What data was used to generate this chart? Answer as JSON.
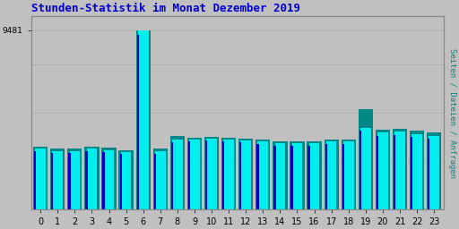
{
  "title": "Stunden-Statistik im Monat Dezember 2019",
  "title_color": "#0000cc",
  "title_fontsize": 9,
  "ylabel_right": "Seiten / Dateien / Anfragen",
  "ylabel_right_color": "#008888",
  "background_color": "#c0c0c0",
  "plot_bg_color": "#c0c0c0",
  "bar_color_cyan": "#00eeee",
  "bar_color_teal": "#008888",
  "bar_color_blue": "#0000cc",
  "x_labels": [
    "0",
    "1",
    "2",
    "3",
    "4",
    "5",
    "6",
    "7",
    "8",
    "9",
    "10",
    "11",
    "12",
    "13",
    "14",
    "15",
    "16",
    "17",
    "18",
    "19",
    "20",
    "21",
    "22",
    "23"
  ],
  "values_teal": [
    3300,
    3200,
    3200,
    3300,
    3250,
    3150,
    9481,
    3200,
    3900,
    3800,
    3850,
    3800,
    3750,
    3700,
    3600,
    3600,
    3600,
    3700,
    3700,
    5300,
    4200,
    4250,
    4150,
    4050
  ],
  "values_cyan": [
    3200,
    3100,
    3100,
    3200,
    3150,
    3050,
    9481,
    3100,
    3700,
    3700,
    3750,
    3700,
    3650,
    3600,
    3500,
    3500,
    3500,
    3600,
    3580,
    4300,
    4050,
    4100,
    4000,
    3900
  ],
  "values_blue": [
    3100,
    3000,
    3000,
    3100,
    3050,
    2950,
    9200,
    2950,
    3550,
    3580,
    3630,
    3580,
    3530,
    3480,
    3380,
    3380,
    3380,
    3480,
    3460,
    4150,
    3900,
    3950,
    3850,
    3750
  ],
  "ylim": [
    0,
    10200
  ],
  "ytick_val": 9481,
  "ytick_label": "9481",
  "grid_color": "#aaaaaa",
  "border_color": "#888888",
  "figsize": [
    5.12,
    2.56
  ],
  "dpi": 100
}
